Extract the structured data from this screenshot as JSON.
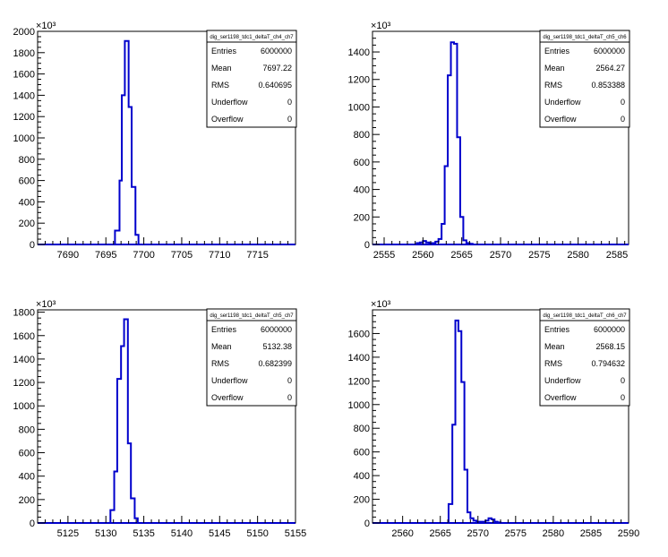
{
  "colors": {
    "histogram_line": "#0000cc",
    "frame": "#000000",
    "background": "#ffffff"
  },
  "chart_data": [
    {
      "type": "histogram",
      "title": "dig_ser1198_tdc1_deltaT_ch4_ch7",
      "y_multiplier_label": "×10³",
      "xlim": [
        7686,
        7720
      ],
      "ylim": [
        0,
        2000
      ],
      "x_ticks": [
        7690,
        7695,
        7700,
        7705,
        7710,
        7715
      ],
      "y_ticks": [
        0,
        200,
        400,
        600,
        800,
        1000,
        1200,
        1400,
        1600,
        1800,
        2000
      ],
      "bin_edges": [
        7696.2,
        7696.8,
        7697.1,
        7697.5,
        7698.0,
        7698.4,
        7698.9,
        7699.3
      ],
      "bin_values": [
        130,
        600,
        1400,
        1910,
        1290,
        540,
        90
      ],
      "stats": [
        {
          "label": "Entries",
          "value": "6000000"
        },
        {
          "label": "Mean",
          "value": "7697.22"
        },
        {
          "label": "RMS",
          "value": "0.640695"
        },
        {
          "label": "Underflow",
          "value": "0"
        },
        {
          "label": "Overflow",
          "value": "0"
        }
      ]
    },
    {
      "type": "histogram",
      "title": "dig_ser1198_tdc1_deltaT_ch5_ch6",
      "y_multiplier_label": "×10³",
      "xlim": [
        2553.5,
        2586.5
      ],
      "ylim": [
        0,
        1550
      ],
      "x_ticks": [
        2555,
        2560,
        2565,
        2570,
        2575,
        2580,
        2585
      ],
      "y_ticks": [
        0,
        200,
        400,
        600,
        800,
        1000,
        1200,
        1400
      ],
      "bin_edges": [
        2559.2,
        2559.6,
        2560.0,
        2560.4,
        2560.8,
        2561.2,
        2561.6,
        2562.0,
        2562.4,
        2562.8,
        2563.2,
        2563.6,
        2564.0,
        2564.4,
        2564.8,
        2565.2,
        2565.6,
        2566.0,
        2566.4
      ],
      "bin_values": [
        10,
        15,
        25,
        15,
        10,
        10,
        20,
        40,
        150,
        570,
        1230,
        1470,
        1460,
        780,
        200,
        30,
        10,
        5
      ],
      "stats": [
        {
          "label": "Entries",
          "value": "6000000"
        },
        {
          "label": "Mean",
          "value": "2564.27"
        },
        {
          "label": "RMS",
          "value": "0.853388"
        },
        {
          "label": "Underflow",
          "value": "0"
        },
        {
          "label": "Overflow",
          "value": "0"
        }
      ]
    },
    {
      "type": "histogram",
      "title": "dig_ser1198_tdc1_deltaT_ch5_ch7",
      "y_multiplier_label": "×10³",
      "xlim": [
        5121,
        5155
      ],
      "ylim": [
        0,
        1820
      ],
      "x_ticks": [
        5125,
        5130,
        5135,
        5140,
        5145,
        5150,
        5155
      ],
      "y_ticks": [
        0,
        200,
        400,
        600,
        800,
        1000,
        1200,
        1400,
        1600,
        1800
      ],
      "bin_edges": [
        5130.6,
        5131.1,
        5131.5,
        5132.0,
        5132.4,
        5132.9,
        5133.3,
        5133.8,
        5134.2
      ],
      "bin_values": [
        110,
        440,
        1230,
        1510,
        1740,
        680,
        210,
        40
      ],
      "stats": [
        {
          "label": "Entries",
          "value": "6000000"
        },
        {
          "label": "Mean",
          "value": "5132.38"
        },
        {
          "label": "RMS",
          "value": "0.682399"
        },
        {
          "label": "Underflow",
          "value": "0"
        },
        {
          "label": "Overflow",
          "value": "0"
        }
      ]
    },
    {
      "type": "histogram",
      "title": "dig_ser1198_tdc1_deltaT_ch6_ch7",
      "y_multiplier_label": "×10³",
      "xlim": [
        2556,
        2590
      ],
      "ylim": [
        0,
        1800
      ],
      "x_ticks": [
        2560,
        2565,
        2570,
        2575,
        2580,
        2585,
        2590
      ],
      "y_ticks": [
        0,
        200,
        400,
        600,
        800,
        1000,
        1200,
        1400,
        1600
      ],
      "bin_edges": [
        2566.1,
        2566.6,
        2567.0,
        2567.4,
        2567.8,
        2568.2,
        2568.6,
        2569.0,
        2569.4,
        2569.8,
        2570.2,
        2570.6,
        2571.0,
        2571.4,
        2571.8,
        2572.2,
        2572.6,
        2573.0
      ],
      "bin_values": [
        160,
        830,
        1710,
        1620,
        1190,
        450,
        90,
        40,
        20,
        10,
        10,
        10,
        20,
        40,
        30,
        10,
        5
      ],
      "stats": [
        {
          "label": "Entries",
          "value": "6000000"
        },
        {
          "label": "Mean",
          "value": "2568.15"
        },
        {
          "label": "RMS",
          "value": "0.794632"
        },
        {
          "label": "Underflow",
          "value": "0"
        },
        {
          "label": "Overflow",
          "value": "0"
        }
      ]
    }
  ]
}
